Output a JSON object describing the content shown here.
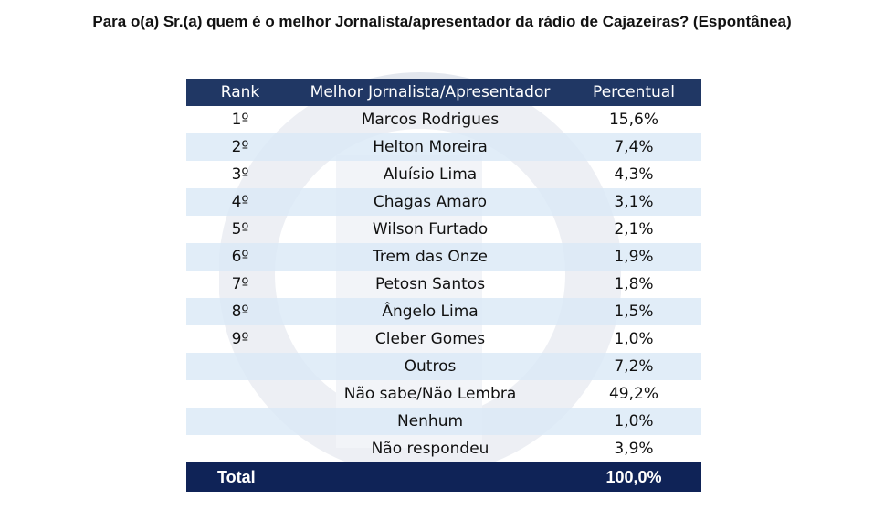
{
  "title": "Para o(a) Sr.(a) quem é o melhor Jornalista/apresentador da rádio de Cajazeiras? (Espontânea)",
  "table": {
    "headers": [
      "Rank",
      "Melhor Jornalista/Apresentador",
      "Percentual"
    ],
    "rows": [
      [
        "1º",
        "Marcos Rodrigues",
        "15,6%"
      ],
      [
        "2º",
        "Helton Moreira",
        "7,4%"
      ],
      [
        "3º",
        "Aluísio Lima",
        "4,3%"
      ],
      [
        "4º",
        "Chagas Amaro",
        "3,1%"
      ],
      [
        "5º",
        "Wilson Furtado",
        "2,1%"
      ],
      [
        "6º",
        "Trem das Onze",
        "1,9%"
      ],
      [
        "7º",
        "Petosn Santos",
        "1,8%"
      ],
      [
        "8º",
        "Ângelo Lima",
        "1,5%"
      ],
      [
        "9º",
        "Cleber Gomes",
        "1,0%"
      ],
      [
        "",
        "Outros",
        "7,2%"
      ],
      [
        "",
        "Não sabe/Não Lembra",
        "49,2%"
      ],
      [
        "",
        "Nenhum",
        "1,0%"
      ],
      [
        "",
        "Não respondeu",
        "3,9%"
      ]
    ],
    "total": {
      "label": "Total",
      "value": "100,0%"
    }
  },
  "colors": {
    "header_bg": "#203764",
    "total_bg": "#0f2357",
    "stripe": "#ddebf7",
    "watermark": "#e3e7ee"
  }
}
